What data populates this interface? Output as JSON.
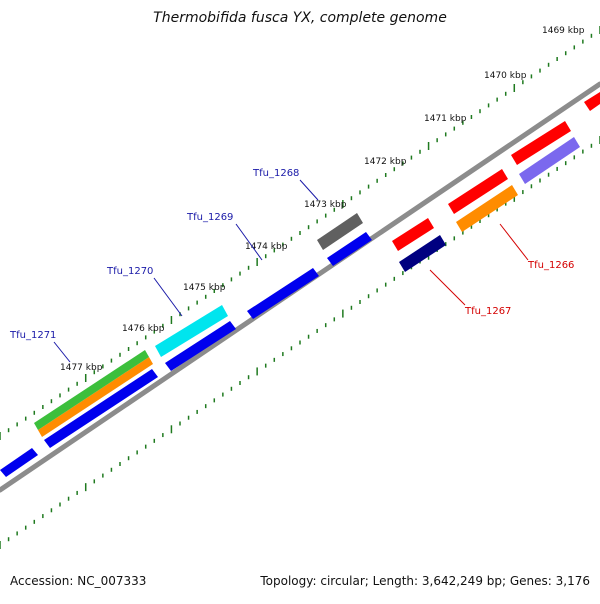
{
  "title": "Thermobifida fusca YX, complete genome",
  "footer": {
    "accession": "Accession: NC_007333",
    "summary": "Topology: circular; Length: 3,642,249 bp; Genes: 3,176"
  },
  "scale_labels": [
    "1469 kbp",
    "1470 kbp",
    "1471 kbp",
    "1472 kbp",
    "1473 kbp",
    "1474 kbp",
    "1475 kbp",
    "1476 kbp",
    "1477 kbp"
  ],
  "gene_labels": [
    {
      "id": "Tfu_1266",
      "color": "#d40000"
    },
    {
      "id": "Tfu_1267",
      "color": "#d40000"
    },
    {
      "id": "Tfu_1268",
      "color": "#1a1aa8"
    },
    {
      "id": "Tfu_1269",
      "color": "#1a1aa8"
    },
    {
      "id": "Tfu_1270",
      "color": "#1a1aa8"
    },
    {
      "id": "Tfu_1271",
      "color": "#1a1aa8"
    }
  ],
  "colors": {
    "backbone": "#8c8c8c",
    "tick": "#1f7a1f",
    "gene_blue": "#0000ee",
    "gene_red": "#ff0000",
    "gene_navy": "#000080",
    "gene_orange": "#ff8c00",
    "gene_cyan": "#00e5ee",
    "gene_green": "#3cbf3c",
    "gene_grey": "#606060",
    "gene_purple": "#7b68ee"
  }
}
